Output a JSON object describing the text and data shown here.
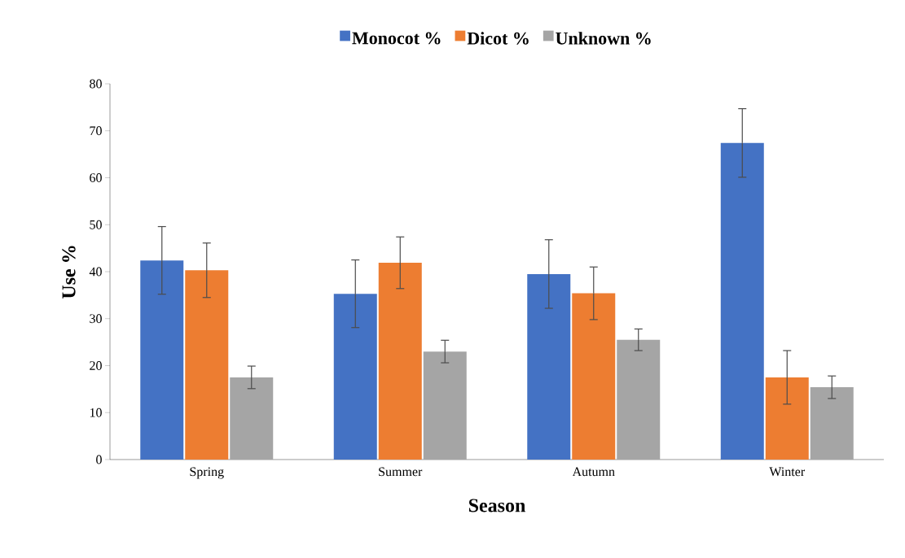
{
  "chart_data": {
    "type": "bar",
    "xlabel": "Season",
    "ylabel": "Use %",
    "categories": [
      "Spring",
      "Summer",
      "Autumn",
      "Winter"
    ],
    "series": [
      {
        "name": "Monocot %",
        "color": "#4472c4",
        "values": [
          42.4,
          35.3,
          39.5,
          67.4
        ],
        "errors": [
          7.2,
          7.2,
          7.3,
          7.3
        ]
      },
      {
        "name": "Dicot %",
        "color": "#ed7d31",
        "values": [
          40.3,
          41.9,
          35.4,
          17.5
        ],
        "errors": [
          5.8,
          5.5,
          5.6,
          5.7
        ]
      },
      {
        "name": "Unknown %",
        "color": "#a5a5a5",
        "values": [
          17.5,
          23.0,
          25.5,
          15.4
        ],
        "errors": [
          2.4,
          2.4,
          2.3,
          2.4
        ]
      }
    ],
    "ylim": [
      0,
      80
    ],
    "yticks": [
      0,
      10,
      20,
      30,
      40,
      50,
      60,
      70,
      80
    ],
    "grid": false,
    "legend": "top"
  }
}
